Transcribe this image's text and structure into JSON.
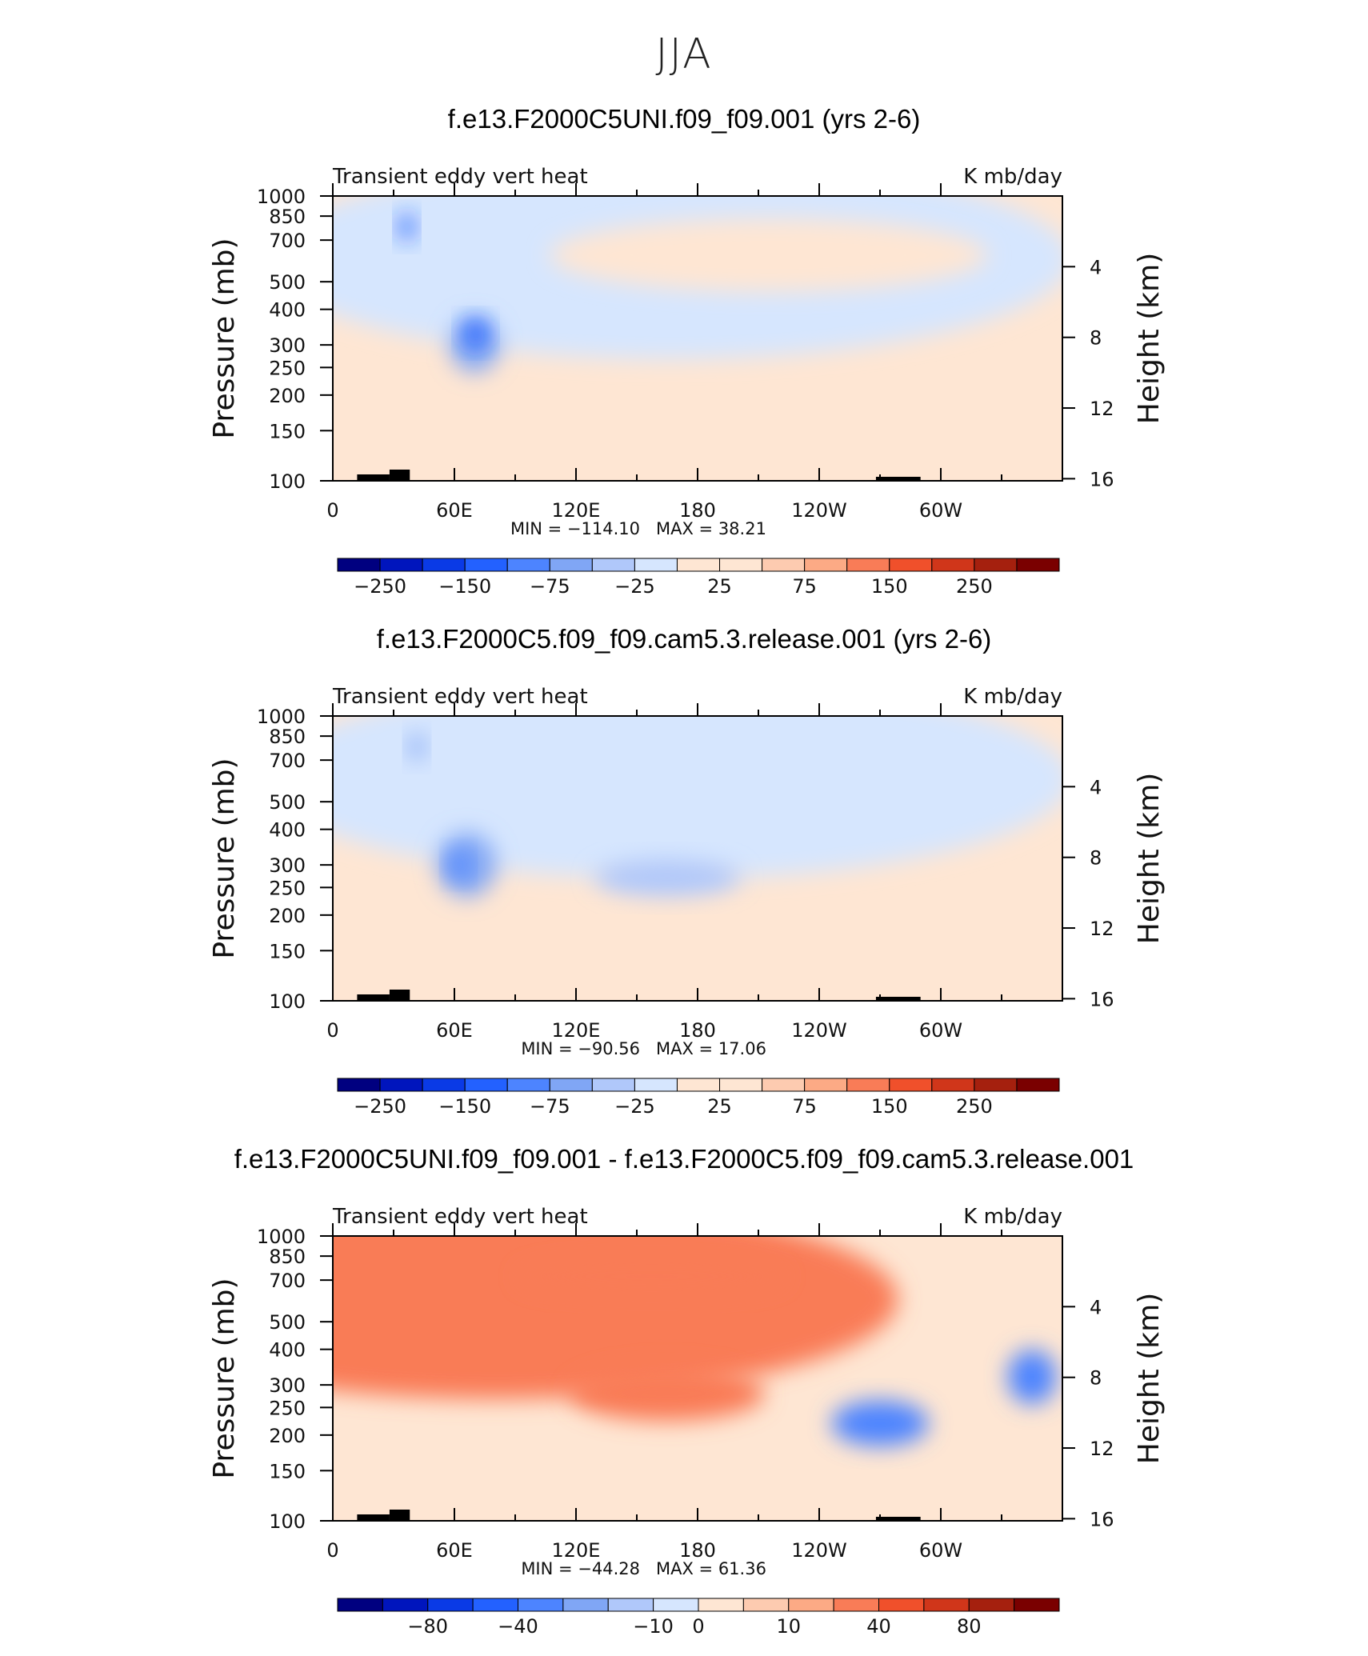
{
  "page_title": "JJA",
  "chart_data": [
    {
      "type": "heatmap",
      "title": "f.e13.F2000C5UNI.f09_f09.001 (yrs 2-6)",
      "variable_label": "Transient eddy vert heat",
      "units_label": "K mb/day",
      "ylabel": "Pressure (mb)",
      "ylabel_right": "Height (km)",
      "x_ticks": [
        "0",
        "60E",
        "120E",
        "180",
        "120W",
        "60W"
      ],
      "y_ticks": [
        "100",
        "150",
        "200",
        "250",
        "300",
        "400",
        "500",
        "700",
        "850",
        "1000"
      ],
      "y_ticks_right": [
        "16",
        "12",
        "8",
        "4"
      ],
      "xlim": [
        0,
        360
      ],
      "ylim_mb": [
        1000,
        100
      ],
      "min_label": "MIN = −114.10",
      "max_label": "MAX =   38.21",
      "colorbar": {
        "levels": [
          -250,
          -200,
          -150,
          -100,
          -75,
          -50,
          -25,
          -10,
          10,
          25,
          50,
          75,
          100,
          150,
          200,
          250
        ],
        "labels": [
          "−250",
          "−150",
          "−75",
          "−25",
          "25",
          "75",
          "150",
          "250"
        ]
      },
      "background_level": "positive-low",
      "fields": [
        {
          "lon": 0,
          "lev": 10,
          "w": 300,
          "h": 0.55,
          "val": -20
        },
        {
          "lon": 65,
          "lev": 300,
          "w": 10,
          "h": 0.06,
          "val": -60
        },
        {
          "lon": 68,
          "lev": 330,
          "w": 5,
          "h": 0.03,
          "val": -110
        },
        {
          "lon": 170,
          "lev": 620,
          "w": 90,
          "h": 0.08,
          "val": 15
        },
        {
          "lon": 35,
          "lev": 780,
          "w": 3,
          "h": 0.03,
          "val": -110
        }
      ]
    },
    {
      "type": "heatmap",
      "title": "f.e13.F2000C5.f09_f09.cam5.3.release.001 (yrs 2-6)",
      "variable_label": "Transient eddy vert heat",
      "units_label": "K mb/day",
      "ylabel": "Pressure (mb)",
      "ylabel_right": "Height (km)",
      "x_ticks": [
        "0",
        "60E",
        "120E",
        "180",
        "120W",
        "60W"
      ],
      "y_ticks": [
        "100",
        "150",
        "200",
        "250",
        "300",
        "400",
        "500",
        "700",
        "850",
        "1000"
      ],
      "y_ticks_right": [
        "16",
        "12",
        "8",
        "4"
      ],
      "xlim": [
        0,
        360
      ],
      "ylim_mb": [
        1000,
        100
      ],
      "min_label": "MIN = −90.56",
      "max_label": "MAX =   17.06",
      "colorbar": {
        "levels": [
          -250,
          -200,
          -150,
          -100,
          -75,
          -50,
          -25,
          -10,
          10,
          25,
          50,
          75,
          100,
          150,
          200,
          250
        ],
        "labels": [
          "−250",
          "−150",
          "−75",
          "−25",
          "25",
          "75",
          "150",
          "250"
        ]
      },
      "background_level": "positive-low",
      "fields": [
        {
          "lon": 0,
          "lev": 10,
          "w": 300,
          "h": 0.55,
          "val": -20
        },
        {
          "lon": 60,
          "lev": 300,
          "w": 12,
          "h": 0.07,
          "val": -60
        },
        {
          "lon": 60,
          "lev": 300,
          "w": 4,
          "h": 0.03,
          "val": -90
        },
        {
          "lon": 150,
          "lev": 270,
          "w": 30,
          "h": 0.04,
          "val": -30
        },
        {
          "lon": 40,
          "lev": 780,
          "w": 3,
          "h": 0.03,
          "val": -60
        }
      ]
    },
    {
      "type": "heatmap",
      "title": "f.e13.F2000C5UNI.f09_f09.001 - f.e13.F2000C5.f09_f09.cam5.3.release.001",
      "variable_label": "Transient eddy vert heat",
      "units_label": "K mb/day",
      "ylabel": "Pressure (mb)",
      "ylabel_right": "Height (km)",
      "x_ticks": [
        "0",
        "60E",
        "120E",
        "180",
        "120W",
        "60W"
      ],
      "y_ticks": [
        "100",
        "150",
        "200",
        "250",
        "300",
        "400",
        "500",
        "700",
        "850",
        "1000"
      ],
      "y_ticks_right": [
        "16",
        "12",
        "8",
        "4"
      ],
      "xlim": [
        0,
        360
      ],
      "ylim_mb": [
        1000,
        100
      ],
      "min_label": "MIN = −44.28",
      "max_label": "MAX =   61.36",
      "colorbar": {
        "levels": [
          -100,
          -80,
          -60,
          -40,
          -20,
          -10,
          -5,
          0,
          5,
          10,
          20,
          40,
          60,
          80,
          100
        ],
        "labels": [
          "−80",
          "−40",
          "−10",
          "0",
          "10",
          "40",
          "80"
        ]
      },
      "background_level": "positive-low",
      "fields": [
        {
          "lon": 60,
          "lev": 260,
          "w": 10,
          "h": 0.1,
          "val": 30
        },
        {
          "lon": 130,
          "lev": 720,
          "w": 55,
          "h": 0.04,
          "val": 40
        },
        {
          "lon": 145,
          "lev": 280,
          "w": 40,
          "h": 0.06,
          "val": 25
        },
        {
          "lon": 260,
          "lev": 220,
          "w": 20,
          "h": 0.05,
          "val": -25
        },
        {
          "lon": 340,
          "lev": 320,
          "w": 10,
          "h": 0.06,
          "val": -25
        }
      ]
    }
  ]
}
